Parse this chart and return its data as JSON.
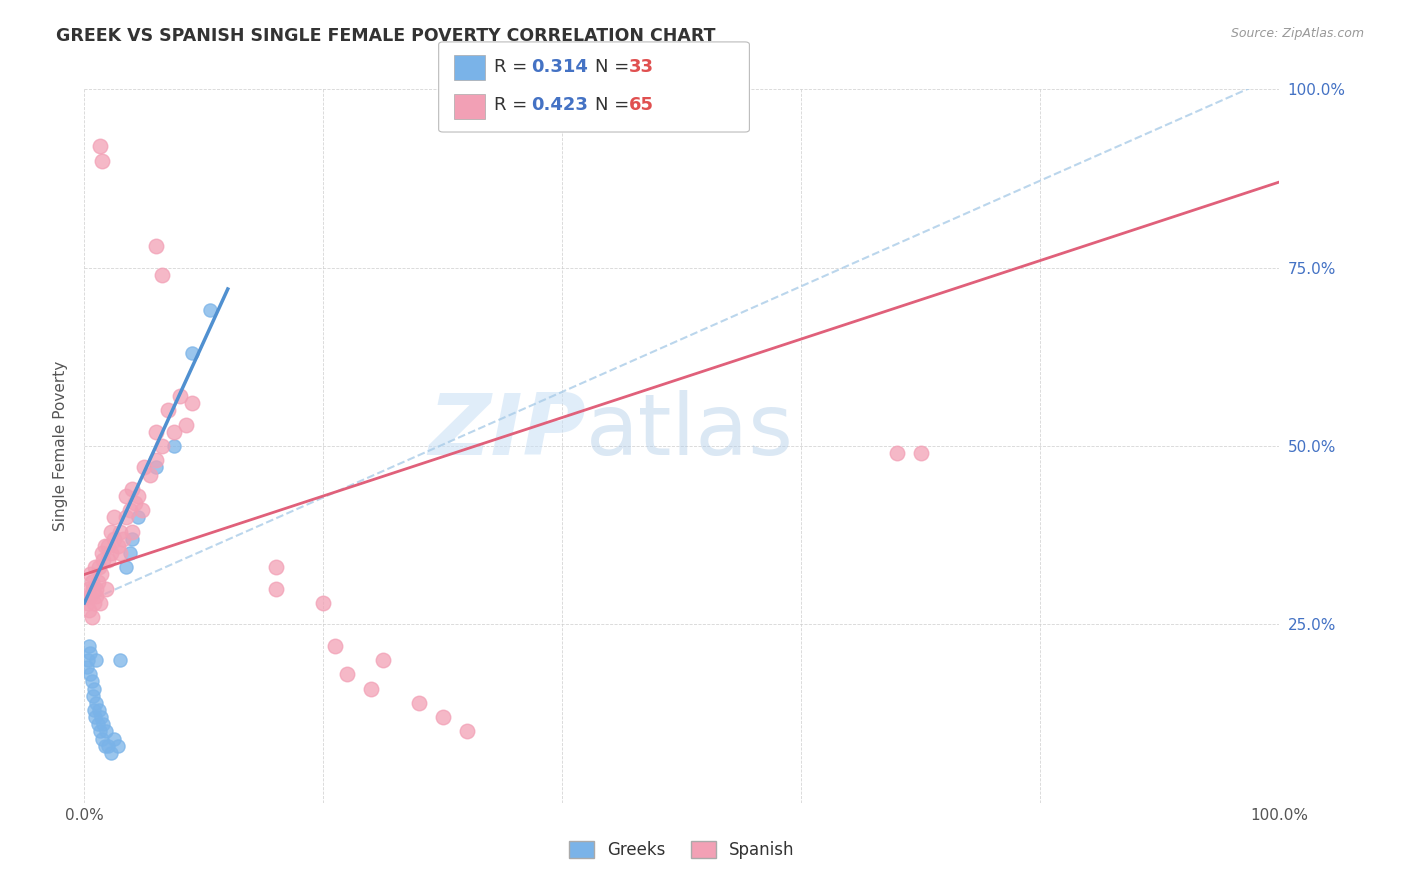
{
  "title": "GREEK VS SPANISH SINGLE FEMALE POVERTY CORRELATION CHART",
  "source": "Source: ZipAtlas.com",
  "ylabel": "Single Female Poverty",
  "greek_color": "#7ab3e8",
  "spanish_color": "#f2a0b5",
  "greek_line_color": "#5090d0",
  "spanish_line_color": "#e0607a",
  "watermark_zip": "ZIP",
  "watermark_atlas": "atlas",
  "background_color": "#ffffff",
  "greek_points": [
    [
      0.002,
      0.19
    ],
    [
      0.003,
      0.2
    ],
    [
      0.004,
      0.22
    ],
    [
      0.005,
      0.18
    ],
    [
      0.005,
      0.21
    ],
    [
      0.006,
      0.17
    ],
    [
      0.007,
      0.15
    ],
    [
      0.008,
      0.13
    ],
    [
      0.008,
      0.16
    ],
    [
      0.009,
      0.12
    ],
    [
      0.01,
      0.14
    ],
    [
      0.01,
      0.2
    ],
    [
      0.011,
      0.11
    ],
    [
      0.012,
      0.13
    ],
    [
      0.013,
      0.1
    ],
    [
      0.014,
      0.12
    ],
    [
      0.015,
      0.09
    ],
    [
      0.016,
      0.11
    ],
    [
      0.017,
      0.08
    ],
    [
      0.018,
      0.1
    ],
    [
      0.02,
      0.08
    ],
    [
      0.022,
      0.07
    ],
    [
      0.025,
      0.09
    ],
    [
      0.028,
      0.08
    ],
    [
      0.03,
      0.2
    ],
    [
      0.035,
      0.33
    ],
    [
      0.038,
      0.35
    ],
    [
      0.04,
      0.37
    ],
    [
      0.045,
      0.4
    ],
    [
      0.06,
      0.47
    ],
    [
      0.075,
      0.5
    ],
    [
      0.09,
      0.63
    ],
    [
      0.105,
      0.69
    ]
  ],
  "spanish_points": [
    [
      0.002,
      0.28
    ],
    [
      0.003,
      0.3
    ],
    [
      0.004,
      0.27
    ],
    [
      0.005,
      0.32
    ],
    [
      0.005,
      0.29
    ],
    [
      0.006,
      0.31
    ],
    [
      0.006,
      0.26
    ],
    [
      0.007,
      0.3
    ],
    [
      0.008,
      0.28
    ],
    [
      0.009,
      0.33
    ],
    [
      0.01,
      0.3
    ],
    [
      0.01,
      0.29
    ],
    [
      0.011,
      0.31
    ],
    [
      0.012,
      0.33
    ],
    [
      0.013,
      0.28
    ],
    [
      0.014,
      0.32
    ],
    [
      0.015,
      0.35
    ],
    [
      0.016,
      0.34
    ],
    [
      0.017,
      0.36
    ],
    [
      0.018,
      0.3
    ],
    [
      0.02,
      0.34
    ],
    [
      0.02,
      0.36
    ],
    [
      0.022,
      0.38
    ],
    [
      0.022,
      0.35
    ],
    [
      0.025,
      0.37
    ],
    [
      0.025,
      0.4
    ],
    [
      0.028,
      0.36
    ],
    [
      0.03,
      0.38
    ],
    [
      0.03,
      0.35
    ],
    [
      0.032,
      0.37
    ],
    [
      0.035,
      0.4
    ],
    [
      0.035,
      0.43
    ],
    [
      0.038,
      0.41
    ],
    [
      0.04,
      0.44
    ],
    [
      0.04,
      0.38
    ],
    [
      0.042,
      0.42
    ],
    [
      0.045,
      0.43
    ],
    [
      0.048,
      0.41
    ],
    [
      0.05,
      0.47
    ],
    [
      0.055,
      0.46
    ],
    [
      0.06,
      0.52
    ],
    [
      0.06,
      0.48
    ],
    [
      0.065,
      0.5
    ],
    [
      0.07,
      0.55
    ],
    [
      0.075,
      0.52
    ],
    [
      0.08,
      0.57
    ],
    [
      0.085,
      0.53
    ],
    [
      0.09,
      0.56
    ],
    [
      0.013,
      0.92
    ],
    [
      0.015,
      0.9
    ],
    [
      0.06,
      0.78
    ],
    [
      0.065,
      0.74
    ],
    [
      0.16,
      0.3
    ],
    [
      0.16,
      0.33
    ],
    [
      0.2,
      0.28
    ],
    [
      0.21,
      0.22
    ],
    [
      0.22,
      0.18
    ],
    [
      0.24,
      0.16
    ],
    [
      0.25,
      0.2
    ],
    [
      0.28,
      0.14
    ],
    [
      0.3,
      0.12
    ],
    [
      0.32,
      0.1
    ],
    [
      0.68,
      0.49
    ],
    [
      0.7,
      0.49
    ]
  ]
}
